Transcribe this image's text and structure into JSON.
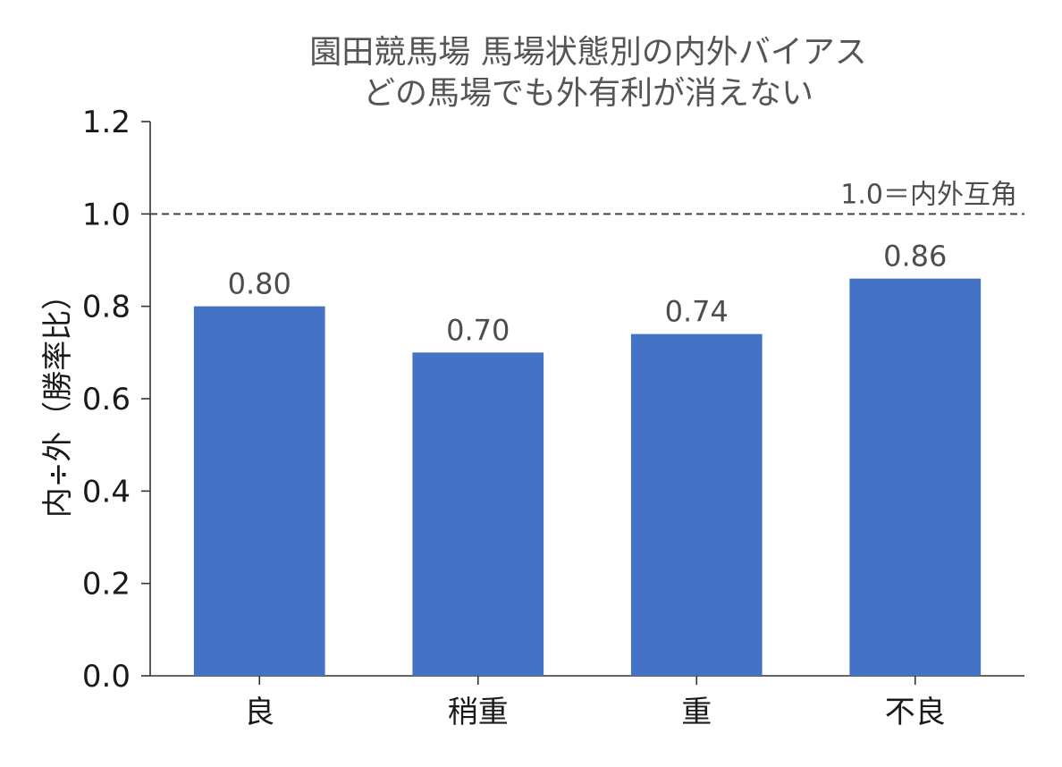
{
  "chart_data": {
    "type": "bar",
    "title": "園田競馬場 馬場状態別の内外バイアス",
    "subtitle": "どの馬場でも外有利が消えない",
    "xlabel": "",
    "ylabel": "内÷外（勝率比）",
    "categories": [
      "良",
      "稍重",
      "重",
      "不良"
    ],
    "values": [
      0.8,
      0.7,
      0.74,
      0.86
    ],
    "value_labels": [
      "0.80",
      "0.70",
      "0.74",
      "0.86"
    ],
    "ylim": [
      0,
      1.2
    ],
    "yticks": [
      0.0,
      0.2,
      0.4,
      0.6,
      0.8,
      1.0,
      1.2
    ],
    "ytick_labels": [
      "0.0",
      "0.2",
      "0.4",
      "0.6",
      "0.8",
      "1.0",
      "1.2"
    ],
    "reference_line": {
      "value": 1.0,
      "label": "1.0＝内外互角",
      "style": "dashed"
    },
    "bar_color": "#4472c4",
    "grid": false,
    "legend": "none"
  }
}
